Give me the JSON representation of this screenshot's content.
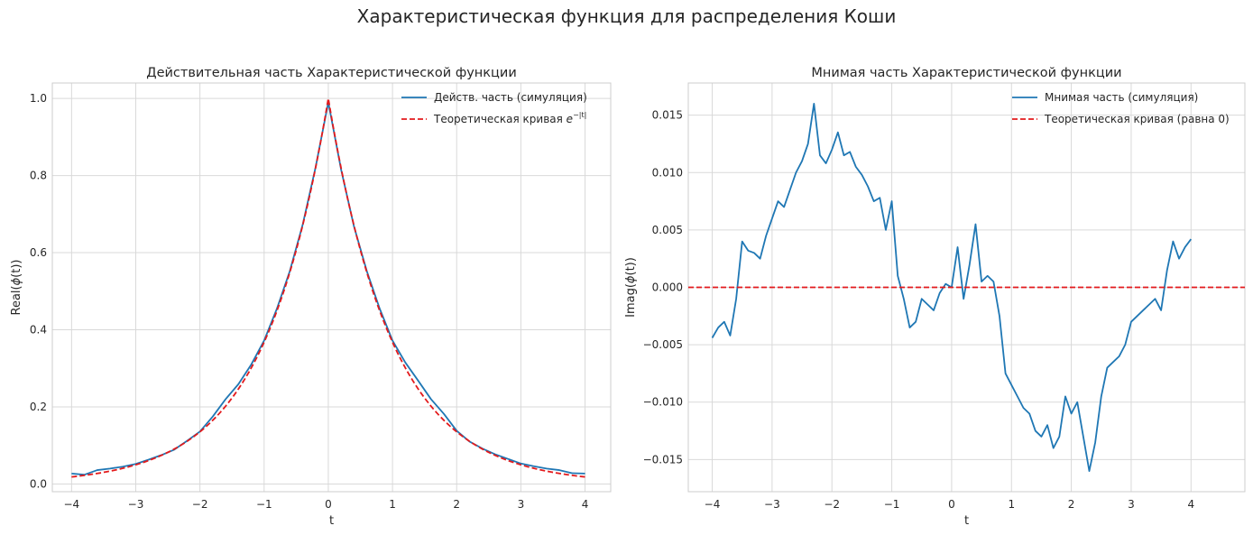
{
  "figure": {
    "suptitle": "Характеристическая функция для распределения Коши"
  },
  "chart_data": [
    {
      "type": "line",
      "title": "Действительная часть Характеристической функции",
      "xlabel": "t",
      "ylabel_prefix": "Real(",
      "ylabel_var": "ϕ",
      "ylabel_arg": "(t)",
      "ylabel_suffix": ")",
      "xlim": [
        -4.3,
        4.4
      ],
      "ylim": [
        -0.02,
        1.04
      ],
      "xticks": [
        -4,
        -3,
        -2,
        -1,
        0,
        1,
        2,
        3,
        4
      ],
      "xtick_labels": [
        "−4",
        "−3",
        "−2",
        "−1",
        "0",
        "1",
        "2",
        "3",
        "4"
      ],
      "yticks": [
        0.0,
        0.2,
        0.4,
        0.6,
        0.8,
        1.0
      ],
      "ytick_labels": [
        "0.0",
        "0.2",
        "0.4",
        "0.6",
        "0.8",
        "1.0"
      ],
      "grid": true,
      "legend_position": "top-right",
      "series": [
        {
          "name": "Действ. часть (симуляция)",
          "style": "solid",
          "color": "#1f77b4",
          "x": [
            -4.0,
            -3.8,
            -3.6,
            -3.4,
            -3.2,
            -3.0,
            -2.8,
            -2.6,
            -2.4,
            -2.2,
            -2.0,
            -1.8,
            -1.6,
            -1.4,
            -1.2,
            -1.0,
            -0.8,
            -0.6,
            -0.4,
            -0.2,
            0.0,
            0.2,
            0.4,
            0.6,
            0.8,
            1.0,
            1.2,
            1.4,
            1.6,
            1.8,
            2.0,
            2.2,
            2.4,
            2.6,
            2.8,
            3.0,
            3.2,
            3.4,
            3.6,
            3.8,
            4.0
          ],
          "y": [
            0.027,
            0.024,
            0.036,
            0.04,
            0.045,
            0.052,
            0.063,
            0.075,
            0.089,
            0.112,
            0.136,
            0.175,
            0.22,
            0.259,
            0.31,
            0.372,
            0.455,
            0.552,
            0.672,
            0.82,
            0.99,
            0.815,
            0.668,
            0.552,
            0.455,
            0.372,
            0.315,
            0.268,
            0.22,
            0.182,
            0.138,
            0.11,
            0.092,
            0.077,
            0.065,
            0.053,
            0.046,
            0.04,
            0.036,
            0.028,
            0.027
          ]
        },
        {
          "name_prefix": "Теоретическая кривая ",
          "name_base": "e",
          "name_sup": "−|t|",
          "style": "dashed",
          "color": "#e31a1c",
          "function": "exp(-|t|)",
          "x_range": [
            -4,
            4
          ]
        }
      ]
    },
    {
      "type": "line",
      "title": "Мнимая часть Характеристической функции",
      "xlabel": "t",
      "ylabel_prefix": "Imag(",
      "ylabel_var": "ϕ",
      "ylabel_arg": "(t)",
      "ylabel_suffix": ")",
      "xlim": [
        -4.4,
        4.9
      ],
      "ylim": [
        -0.0178,
        0.0178
      ],
      "xticks": [
        -4,
        -3,
        -2,
        -1,
        0,
        1,
        2,
        3,
        4
      ],
      "xtick_labels": [
        "−4",
        "−3",
        "−2",
        "−1",
        "0",
        "1",
        "2",
        "3",
        "4"
      ],
      "yticks": [
        -0.015,
        -0.01,
        -0.005,
        0.0,
        0.005,
        0.01,
        0.015
      ],
      "ytick_labels": [
        "−0.015",
        "−0.010",
        "−0.005",
        "0.000",
        "0.005",
        "0.010",
        "0.015"
      ],
      "grid": true,
      "legend_position": "top-right",
      "series": [
        {
          "name": "Мнимая часть (симуляция)",
          "style": "solid",
          "color": "#1f77b4",
          "x": [
            -4.0,
            -3.9,
            -3.8,
            -3.7,
            -3.6,
            -3.5,
            -3.4,
            -3.3,
            -3.2,
            -3.1,
            -3.0,
            -2.9,
            -2.8,
            -2.7,
            -2.6,
            -2.5,
            -2.4,
            -2.3,
            -2.2,
            -2.1,
            -2.0,
            -1.9,
            -1.8,
            -1.7,
            -1.6,
            -1.5,
            -1.4,
            -1.3,
            -1.2,
            -1.1,
            -1.0,
            -0.9,
            -0.8,
            -0.7,
            -0.6,
            -0.5,
            -0.4,
            -0.3,
            -0.2,
            -0.1,
            0.0,
            0.1,
            0.2,
            0.3,
            0.4,
            0.5,
            0.6,
            0.7,
            0.8,
            0.9,
            1.0,
            1.1,
            1.2,
            1.3,
            1.4,
            1.5,
            1.6,
            1.7,
            1.8,
            1.9,
            2.0,
            2.1,
            2.2,
            2.3,
            2.4,
            2.5,
            2.6,
            2.7,
            2.8,
            2.9,
            3.0,
            3.1,
            3.2,
            3.3,
            3.4,
            3.5,
            3.6,
            3.7,
            3.8,
            3.9,
            4.0
          ],
          "y": [
            -0.0044,
            -0.0035,
            -0.003,
            -0.0042,
            -0.001,
            0.004,
            0.0032,
            0.003,
            0.0025,
            0.0045,
            0.006,
            0.0075,
            0.007,
            0.0085,
            0.01,
            0.011,
            0.0125,
            0.016,
            0.0115,
            0.0108,
            0.012,
            0.0135,
            0.0115,
            0.0118,
            0.0105,
            0.0098,
            0.0088,
            0.0075,
            0.0078,
            0.005,
            0.0075,
            0.001,
            -0.001,
            -0.0035,
            -0.003,
            -0.001,
            -0.0015,
            -0.002,
            -0.0005,
            0.0003,
            0.0,
            0.0035,
            -0.001,
            0.002,
            0.0055,
            0.0005,
            0.001,
            0.0005,
            -0.0025,
            -0.0075,
            -0.0085,
            -0.0095,
            -0.0105,
            -0.011,
            -0.0125,
            -0.013,
            -0.012,
            -0.014,
            -0.013,
            -0.0095,
            -0.011,
            -0.01,
            -0.013,
            -0.016,
            -0.0135,
            -0.0095,
            -0.007,
            -0.0065,
            -0.006,
            -0.005,
            -0.003,
            -0.0025,
            -0.002,
            -0.0015,
            -0.001,
            -0.002,
            0.0015,
            0.004,
            0.0025,
            0.0035,
            0.0042
          ]
        },
        {
          "name": "Теоретическая кривая (равна 0)",
          "style": "dashed",
          "color": "#e31a1c",
          "y_constant": 0
        }
      ]
    }
  ]
}
